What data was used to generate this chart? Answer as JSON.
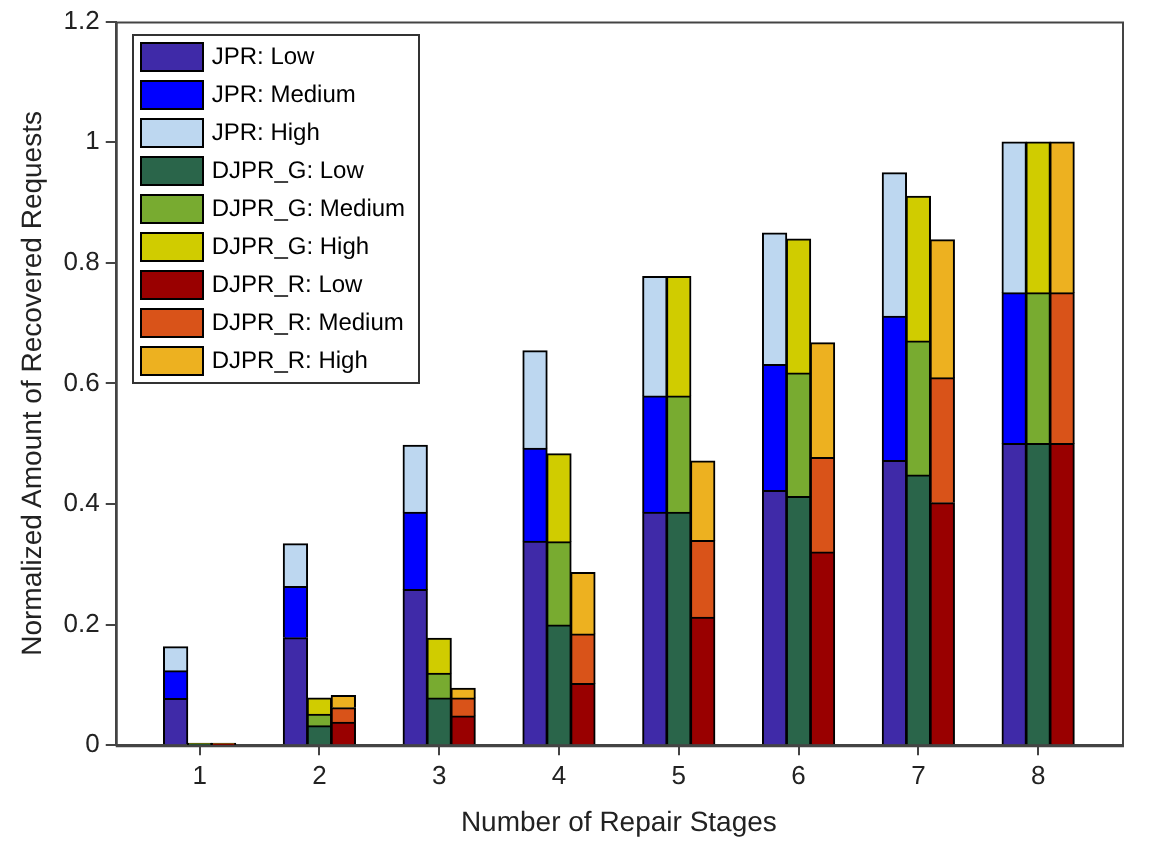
{
  "chart_data": {
    "type": "bar",
    "stacked": true,
    "xlabel": "Number of Repair Stages",
    "ylabel": "Normalized Amount of Recovered Requests",
    "categories": [
      null,
      null,
      null,
      "1",
      null,
      null,
      null,
      null,
      "2",
      null,
      null,
      null,
      null,
      "3",
      null,
      null,
      null,
      null,
      "4",
      null,
      null,
      null,
      null,
      "5",
      null,
      null,
      null,
      null,
      "6",
      null,
      null,
      null,
      null,
      "7",
      null,
      null,
      null,
      null,
      "8",
      null,
      null,
      null
    ],
    "ylim": [
      0,
      1.2
    ],
    "yticks": [
      0,
      0.2,
      0.4,
      0.6,
      0.8,
      1,
      1.2
    ],
    "grid": false,
    "legend": "top left",
    "series": [
      {
        "name": "JPR: Low",
        "color": "#3f2aa8",
        "values": [
          null,
          null,
          0.077,
          null,
          null,
          null,
          null,
          0.178,
          null,
          null,
          null,
          null,
          0.258,
          null,
          null,
          null,
          null,
          0.338,
          null,
          null,
          null,
          null,
          0.386,
          null,
          null,
          null,
          null,
          0.422,
          null,
          null,
          null,
          null,
          0.472,
          null,
          null,
          null,
          null,
          0.5,
          null,
          null,
          null,
          null
        ]
      },
      {
        "name": "JPR: Medium",
        "color": "#0000ff",
        "values": [
          null,
          null,
          0.046,
          null,
          null,
          null,
          null,
          0.085,
          null,
          null,
          null,
          null,
          0.128,
          null,
          null,
          null,
          null,
          0.154,
          null,
          null,
          null,
          null,
          0.193,
          null,
          null,
          null,
          null,
          0.209,
          null,
          null,
          null,
          null,
          0.239,
          null,
          null,
          null,
          null,
          0.25,
          null,
          null,
          null,
          null
        ]
      },
      {
        "name": "JPR: High",
        "color": "#bdd7f0",
        "values": [
          null,
          null,
          0.04,
          null,
          null,
          null,
          null,
          0.071,
          null,
          null,
          null,
          null,
          0.111,
          null,
          null,
          null,
          null,
          0.162,
          null,
          null,
          null,
          null,
          0.198,
          null,
          null,
          null,
          null,
          0.218,
          null,
          null,
          null,
          null,
          0.238,
          null,
          null,
          null,
          null,
          0.25,
          null,
          null,
          null,
          null
        ]
      },
      {
        "name": "DJPR_G: Low",
        "color": "#2a654a",
        "values": [
          null,
          null,
          null,
          0.001,
          null,
          null,
          null,
          null,
          0.032,
          null,
          null,
          null,
          null,
          0.078,
          null,
          null,
          null,
          null,
          0.199,
          null,
          null,
          null,
          null,
          0.386,
          null,
          null,
          null,
          null,
          0.412,
          null,
          null,
          null,
          null,
          0.448,
          null,
          null,
          null,
          null,
          0.5,
          null,
          null,
          null
        ]
      },
      {
        "name": "DJPR_G: Medium",
        "color": "#78ab30",
        "values": [
          null,
          null,
          null,
          0.001,
          null,
          null,
          null,
          null,
          0.019,
          null,
          null,
          null,
          null,
          0.041,
          null,
          null,
          null,
          null,
          0.138,
          null,
          null,
          null,
          null,
          0.193,
          null,
          null,
          null,
          null,
          0.205,
          null,
          null,
          null,
          null,
          0.222,
          null,
          null,
          null,
          null,
          0.25,
          null,
          null,
          null
        ]
      },
      {
        "name": "DJPR_G: High",
        "color": "#d0cc00",
        "values": [
          null,
          null,
          null,
          0.001,
          null,
          null,
          null,
          null,
          0.027,
          null,
          null,
          null,
          null,
          0.058,
          null,
          null,
          null,
          null,
          0.146,
          null,
          null,
          null,
          null,
          0.198,
          null,
          null,
          null,
          null,
          0.222,
          null,
          null,
          null,
          null,
          0.24,
          null,
          null,
          null,
          null,
          0.25,
          null,
          null,
          null
        ]
      },
      {
        "name": "DJPR_R: Low",
        "color": "#990000",
        "values": [
          null,
          null,
          null,
          null,
          0.001,
          null,
          null,
          null,
          null,
          0.038,
          null,
          null,
          null,
          null,
          0.048,
          null,
          null,
          null,
          null,
          0.102,
          null,
          null,
          null,
          null,
          0.212,
          null,
          null,
          null,
          null,
          0.32,
          null,
          null,
          null,
          null,
          0.402,
          null,
          null,
          null,
          null,
          0.5,
          null,
          null
        ]
      },
      {
        "name": "DJPR_R: Medium",
        "color": "#d95319",
        "values": [
          null,
          null,
          null,
          null,
          0.001,
          null,
          null,
          null,
          null,
          0.024,
          null,
          null,
          null,
          null,
          0.03,
          null,
          null,
          null,
          null,
          0.082,
          null,
          null,
          null,
          null,
          0.127,
          null,
          null,
          null,
          null,
          0.157,
          null,
          null,
          null,
          null,
          0.207,
          null,
          null,
          null,
          null,
          0.25,
          null,
          null
        ]
      },
      {
        "name": "DJPR_R: High",
        "color": "#edb120",
        "values": [
          null,
          null,
          null,
          null,
          0.001,
          null,
          null,
          null,
          null,
          0.02,
          null,
          null,
          null,
          null,
          0.016,
          null,
          null,
          null,
          null,
          0.102,
          null,
          null,
          null,
          null,
          0.132,
          null,
          null,
          null,
          null,
          0.19,
          null,
          null,
          null,
          null,
          0.229,
          null,
          null,
          null,
          null,
          0.25,
          null,
          null
        ]
      }
    ]
  }
}
